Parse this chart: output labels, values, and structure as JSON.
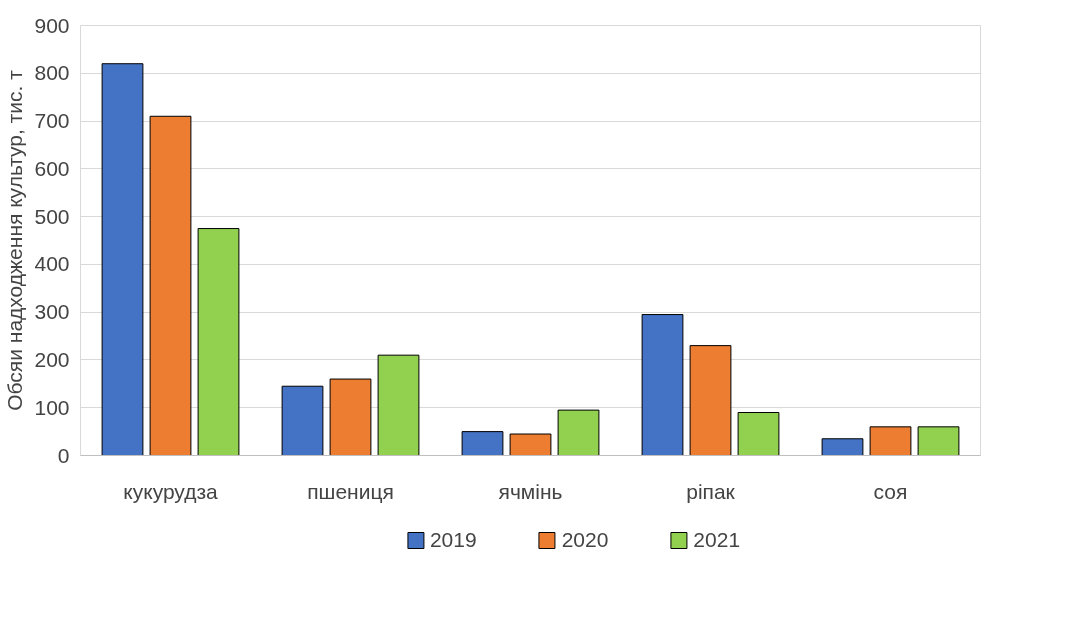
{
  "chart_data": {
    "type": "bar",
    "ylabel": "Обсяи надходження культур, тис. т",
    "categories": [
      "кукурудза",
      "пшениця",
      "ячмінь",
      "ріпак",
      "соя"
    ],
    "series": [
      {
        "name": "2019",
        "color": "#4472c4",
        "values": [
          820,
          145,
          50,
          295,
          35
        ]
      },
      {
        "name": "2020",
        "color": "#ed7d31",
        "values": [
          710,
          160,
          45,
          230,
          60
        ]
      },
      {
        "name": "2021",
        "color": "#92d050",
        "values": [
          475,
          210,
          95,
          90,
          60
        ]
      }
    ],
    "ylim": [
      0,
      900
    ],
    "yticks": [
      0,
      100,
      200,
      300,
      400,
      500,
      600,
      700,
      800,
      900
    ],
    "grid": "y",
    "legend": "bottom"
  }
}
